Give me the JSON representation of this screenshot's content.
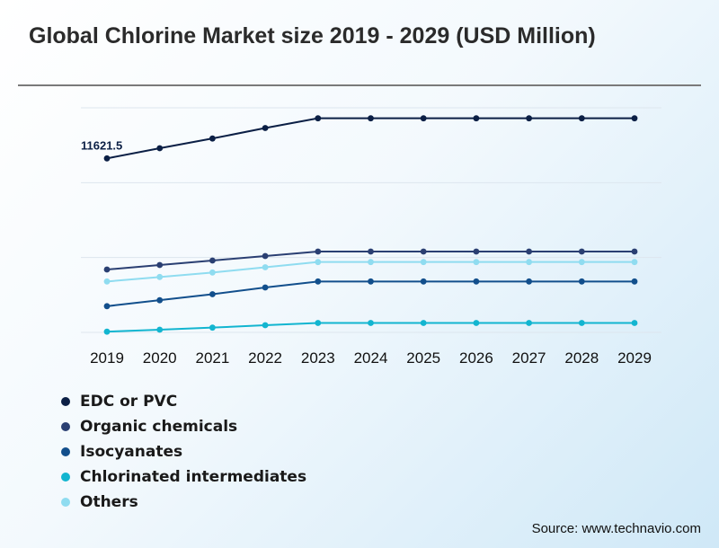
{
  "title": "Global Chlorine Market size 2019 - 2029 (USD Million)",
  "source": "Source: www.technavio.com",
  "chart_data": {
    "type": "line",
    "title": "Global Chlorine Market size 2019 - 2029 (USD Million)",
    "x": [
      "2019",
      "2020",
      "2021",
      "2022",
      "2023",
      "2024",
      "2025",
      "2026",
      "2027",
      "2028",
      "2029"
    ],
    "ylim": [
      0,
      15000
    ],
    "grid": true,
    "legend_position": "bottom-left",
    "series": [
      {
        "name": "EDC or PVC",
        "color": "#0b1f45",
        "values": [
          11621.5,
          12300,
          12950,
          13650,
          14300,
          14300,
          14300,
          14300,
          14300,
          14300,
          14300
        ]
      },
      {
        "name": "Organic chemicals",
        "color": "#2a3f72",
        "values": [
          4200,
          4500,
          4800,
          5100,
          5400,
          5400,
          5400,
          5400,
          5400,
          5400,
          5400
        ]
      },
      {
        "name": "Isocyanates",
        "color": "#124f8c",
        "values": [
          1750,
          2150,
          2550,
          3000,
          3400,
          3400,
          3400,
          3400,
          3400,
          3400,
          3400
        ]
      },
      {
        "name": "Chlorinated intermediates",
        "color": "#12b5d0",
        "values": [
          50,
          180,
          320,
          480,
          630,
          630,
          630,
          630,
          630,
          630,
          630
        ]
      },
      {
        "name": "Others",
        "color": "#8fdcf0",
        "values": [
          3400,
          3700,
          4000,
          4350,
          4700,
          4700,
          4700,
          4700,
          4700,
          4700,
          4700
        ]
      }
    ],
    "annotations": [
      {
        "series": "EDC or PVC",
        "index": 0,
        "text": "11621.5"
      }
    ]
  }
}
